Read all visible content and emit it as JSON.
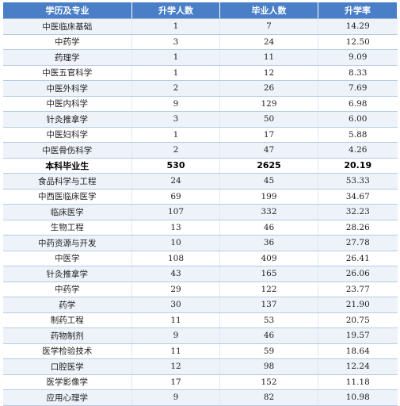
{
  "table": {
    "headers": [
      "学历及专业",
      "升学人数",
      "毕业人数",
      "升学率"
    ],
    "rows": [
      {
        "major": "中医临床基础",
        "admitted": "1",
        "graduates": "7",
        "rate": "14.29"
      },
      {
        "major": "中药学",
        "admitted": "3",
        "graduates": "24",
        "rate": "12.50"
      },
      {
        "major": "药理学",
        "admitted": "1",
        "graduates": "11",
        "rate": "9.09"
      },
      {
        "major": "中医五官科学",
        "admitted": "1",
        "graduates": "12",
        "rate": "8.33"
      },
      {
        "major": "中医外科学",
        "admitted": "2",
        "graduates": "26",
        "rate": "7.69"
      },
      {
        "major": "中医内科学",
        "admitted": "9",
        "graduates": "129",
        "rate": "6.98"
      },
      {
        "major": "针灸推拿学",
        "admitted": "3",
        "graduates": "50",
        "rate": "6.00"
      },
      {
        "major": "中医妇科学",
        "admitted": "1",
        "graduates": "17",
        "rate": "5.88"
      },
      {
        "major": "中医骨伤科学",
        "admitted": "2",
        "graduates": "47",
        "rate": "4.26"
      },
      {
        "major": "本科毕业生",
        "admitted": "530",
        "graduates": "2625",
        "rate": "20.19",
        "summary": true
      },
      {
        "major": "食品科学与工程",
        "admitted": "24",
        "graduates": "45",
        "rate": "53.33"
      },
      {
        "major": "中西医临床医学",
        "admitted": "69",
        "graduates": "199",
        "rate": "34.67"
      },
      {
        "major": "临床医学",
        "admitted": "107",
        "graduates": "332",
        "rate": "32.23"
      },
      {
        "major": "生物工程",
        "admitted": "13",
        "graduates": "46",
        "rate": "28.26"
      },
      {
        "major": "中药资源与开发",
        "admitted": "10",
        "graduates": "36",
        "rate": "27.78"
      },
      {
        "major": "中医学",
        "admitted": "108",
        "graduates": "409",
        "rate": "26.41"
      },
      {
        "major": "针灸推拿学",
        "admitted": "43",
        "graduates": "165",
        "rate": "26.06"
      },
      {
        "major": "中药学",
        "admitted": "29",
        "graduates": "122",
        "rate": "23.77"
      },
      {
        "major": "药学",
        "admitted": "30",
        "graduates": "137",
        "rate": "21.90"
      },
      {
        "major": "制药工程",
        "admitted": "11",
        "graduates": "53",
        "rate": "20.75"
      },
      {
        "major": "药物制剂",
        "admitted": "9",
        "graduates": "46",
        "rate": "19.57"
      },
      {
        "major": "医学检验技术",
        "admitted": "11",
        "graduates": "59",
        "rate": "18.64"
      },
      {
        "major": "口腔医学",
        "admitted": "12",
        "graduates": "98",
        "rate": "12.24"
      },
      {
        "major": "医学影像学",
        "admitted": "17",
        "graduates": "152",
        "rate": "11.18"
      },
      {
        "major": "应用心理学",
        "admitted": "9",
        "graduates": "82",
        "rate": "10.98"
      }
    ]
  }
}
